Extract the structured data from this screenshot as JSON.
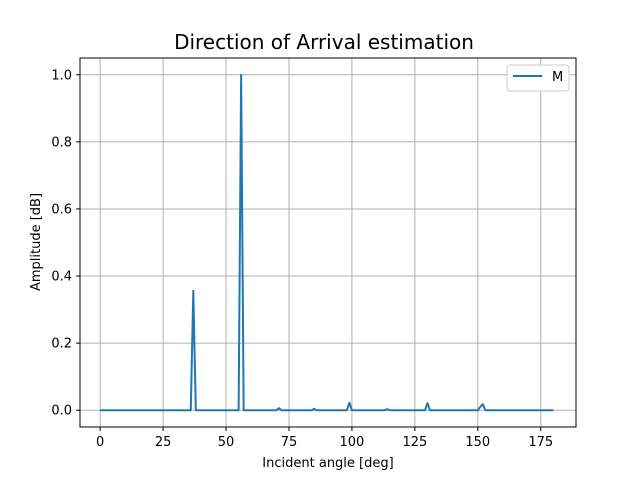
{
  "chart_data": {
    "type": "line",
    "title": "Direction of Arrival estimation",
    "xlabel": "Incident angle [deg]",
    "ylabel": "Amplitude [dB]",
    "xlim": [
      -8,
      189
    ],
    "ylim": [
      -0.05,
      1.05
    ],
    "xticks": [
      0,
      25,
      50,
      75,
      100,
      125,
      150,
      175
    ],
    "yticks": [
      0.0,
      0.2,
      0.4,
      0.6,
      0.8,
      1.0
    ],
    "xtick_labels": [
      "0",
      "25",
      "50",
      "75",
      "100",
      "125",
      "150",
      "175"
    ],
    "ytick_labels": [
      "0.0",
      "0.2",
      "0.4",
      "0.6",
      "0.8",
      "1.0"
    ],
    "grid": true,
    "legend_position": "top-right",
    "colors": {
      "series": "#1f77b4",
      "grid": "#b0b0b0"
    },
    "series": [
      {
        "name": "M",
        "x": [
          0,
          36,
          37,
          38,
          55,
          56,
          57,
          70,
          71,
          72,
          84,
          85,
          86,
          98,
          99,
          100,
          113,
          114,
          115,
          129,
          130,
          131,
          150,
          151,
          152,
          153,
          180
        ],
        "y": [
          0.0,
          0.0,
          0.356,
          0.0,
          0.0,
          1.0,
          0.0,
          0.0,
          0.006,
          0.0,
          0.0,
          0.004,
          0.0,
          0.0,
          0.022,
          0.0,
          0.0,
          0.003,
          0.0,
          0.0,
          0.021,
          0.0,
          0.0,
          0.01,
          0.018,
          0.0,
          0.0
        ]
      }
    ]
  }
}
